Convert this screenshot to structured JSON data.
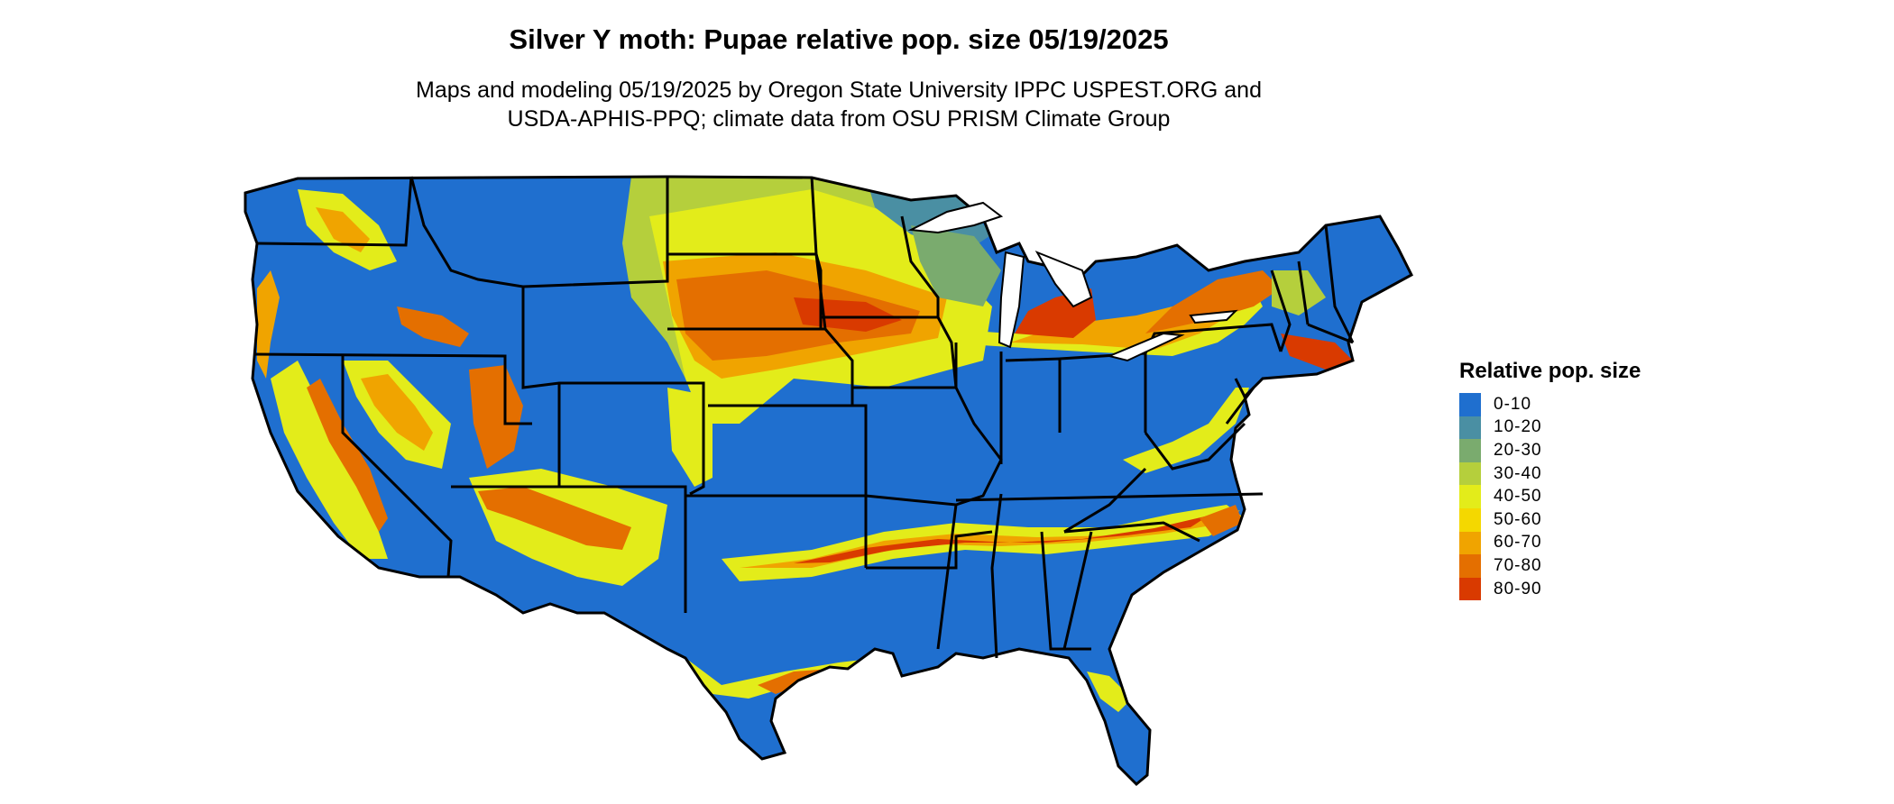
{
  "title": "Silver Y moth: Pupae relative pop. size 05/19/2025",
  "subtitle_line1": "Maps and modeling 05/19/2025 by Oregon State University IPPC USPEST.ORG and",
  "subtitle_line2": "USDA-APHIS-PPQ; climate data from OSU PRISM Climate Group",
  "legend": {
    "title": "Relative pop. size",
    "items": [
      {
        "label": "0-10",
        "color": "#1f6fcf"
      },
      {
        "label": "10-20",
        "color": "#4a8fa3"
      },
      {
        "label": "20-30",
        "color": "#7aab6e"
      },
      {
        "label": "30-40",
        "color": "#b5cf3c"
      },
      {
        "label": "40-50",
        "color": "#e3ec1a"
      },
      {
        "label": "50-60",
        "color": "#f4d800"
      },
      {
        "label": "60-70",
        "color": "#f0a400"
      },
      {
        "label": "70-80",
        "color": "#e46f00"
      },
      {
        "label": "80-90",
        "color": "#d93a00"
      }
    ]
  }
}
